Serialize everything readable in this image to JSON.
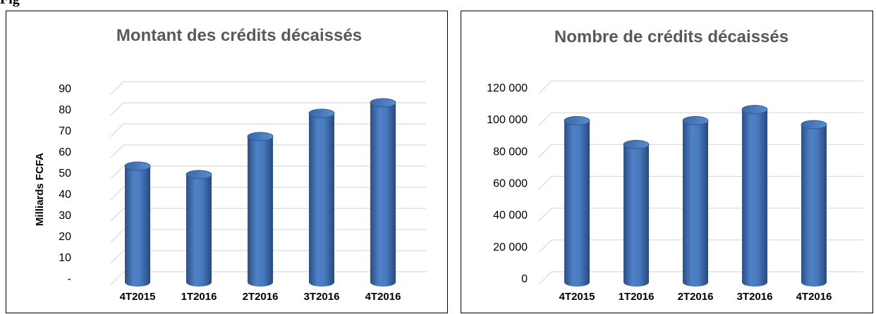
{
  "figure_label": "Fig",
  "chart_data": [
    {
      "type": "bar",
      "title": "Montant des crédits décaissés",
      "xlabel": "",
      "ylabel": "Milliards FCFA",
      "categories": [
        "4T2015",
        "1T2016",
        "2T2016",
        "3T2016",
        "4T2016"
      ],
      "values": [
        53,
        49,
        67,
        78,
        83
      ],
      "ylim": [
        0,
        90
      ],
      "yticks": [
        0,
        10,
        20,
        30,
        40,
        50,
        60,
        70,
        80,
        90
      ],
      "ytick_labels": [
        "-",
        "10",
        "20",
        "30",
        "40",
        "50",
        "60",
        "70",
        "80",
        "90"
      ],
      "grid": true,
      "bar_color": "#3F6FB5"
    },
    {
      "type": "bar",
      "title": "Nombre de crédits décaissés",
      "xlabel": "",
      "ylabel": "",
      "categories": [
        "4T2015",
        "1T2016",
        "2T2016",
        "3T2016",
        "4T2016"
      ],
      "values": [
        99000,
        84000,
        99000,
        106000,
        96500
      ],
      "ylim": [
        0,
        120000
      ],
      "yticks": [
        0,
        20000,
        40000,
        60000,
        80000,
        100000,
        120000
      ],
      "ytick_labels": [
        "0",
        "20 000",
        "40 000",
        "60 000",
        "80 000",
        "100 000",
        "120 000"
      ],
      "grid": true,
      "bar_color": "#3F6FB5"
    }
  ]
}
